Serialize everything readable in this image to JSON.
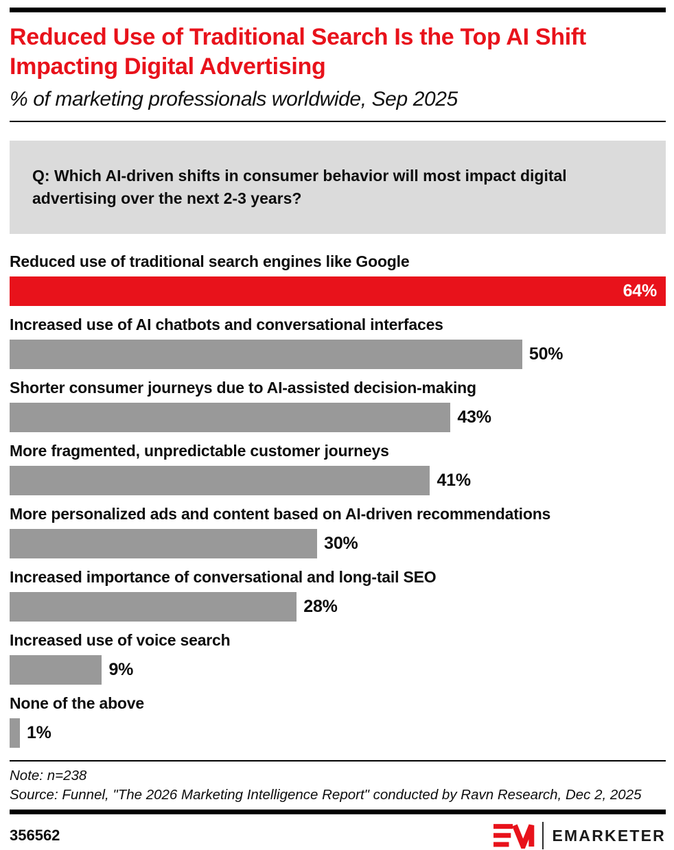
{
  "header": {
    "title": "Reduced Use of Traditional Search Is the Top AI Shift Impacting Digital Advertising",
    "subtitle": "% of marketing professionals worldwide, Sep 2025",
    "title_color": "#e8121b"
  },
  "question": {
    "text": "Q: Which AI-driven shifts in consumer behavior will most impact digital advertising over the next 2-3 years?"
  },
  "chart_data": {
    "type": "bar",
    "orientation": "horizontal",
    "unit": "%",
    "scale_max": 64,
    "categories": [
      "Reduced use of traditional search engines like Google",
      "Increased use of AI chatbots and conversational interfaces",
      "Shorter consumer journeys due to AI-assisted decision-making",
      "More fragmented, unpredictable customer journeys",
      "More personalized ads and content based on AI-driven recommendations",
      "Increased importance of conversational and long-tail SEO",
      "Increased use of voice search",
      "None of the above"
    ],
    "values": [
      64,
      50,
      43,
      41,
      30,
      28,
      9,
      1
    ],
    "value_labels": [
      "64%",
      "50%",
      "43%",
      "41%",
      "30%",
      "28%",
      "9%",
      "1%"
    ],
    "highlight_index": 0,
    "highlight_color": "#e8121b",
    "default_color": "#999999",
    "value_label_placement": [
      "inside",
      "outside",
      "outside",
      "outside",
      "outside",
      "outside",
      "outside",
      "outside"
    ],
    "legend": "none",
    "grid": "off"
  },
  "footnote": {
    "note": "Note: n=238",
    "source": "Source: Funnel, \"The 2026 Marketing Intelligence Report\" conducted by Ravn Research, Dec 2, 2025"
  },
  "footer": {
    "chart_id": "356562",
    "brand_name": "EMARKETER",
    "brand_red": "#e8121b"
  }
}
